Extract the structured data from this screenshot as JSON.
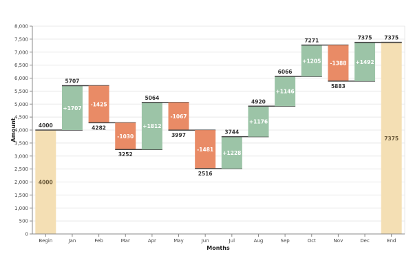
{
  "chart_data": {
    "type": "waterfall",
    "xlabel": "Months",
    "ylabel": "Amount",
    "ylim": [
      0,
      8000
    ],
    "yticks": [
      0,
      500,
      1000,
      1500,
      2000,
      2500,
      3000,
      3500,
      4000,
      4500,
      5000,
      5500,
      6000,
      6500,
      7000,
      7500,
      8000
    ],
    "grid": true,
    "categories": [
      "Begin",
      "Jan",
      "Feb",
      "Mar",
      "Apr",
      "May",
      "Jun",
      "Jul",
      "Aug",
      "Sep",
      "Oct",
      "Nov",
      "Dec",
      "End"
    ],
    "start": 4000,
    "changes": [
      null,
      1707,
      -1425,
      -1030,
      1812,
      -1067,
      -1481,
      1228,
      1176,
      1146,
      1205,
      -1388,
      1492,
      null
    ],
    "totals": [
      4000,
      5707,
      4282,
      3252,
      5064,
      3997,
      2516,
      3744,
      4920,
      6066,
      7271,
      5883,
      7375,
      7375
    ],
    "change_labels": [
      "4000",
      "+1707",
      "-1425",
      "-1030",
      "+1812",
      "-1067",
      "-1481",
      "+1228",
      "+1176",
      "+1146",
      "+1205",
      "-1388",
      "+1492",
      "7375"
    ],
    "total_labels": [
      "4000",
      "5707",
      "4282",
      "3252",
      "5064",
      "3997",
      "2516",
      "3744",
      "4920",
      "6066",
      "7271",
      "5883",
      "7375",
      "7375"
    ],
    "colors": {
      "total": "#f4dfb4",
      "increase": "#9cc4a7",
      "decrease": "#e98b66",
      "connector": "#444444",
      "grid": "#e8e8e8"
    }
  }
}
